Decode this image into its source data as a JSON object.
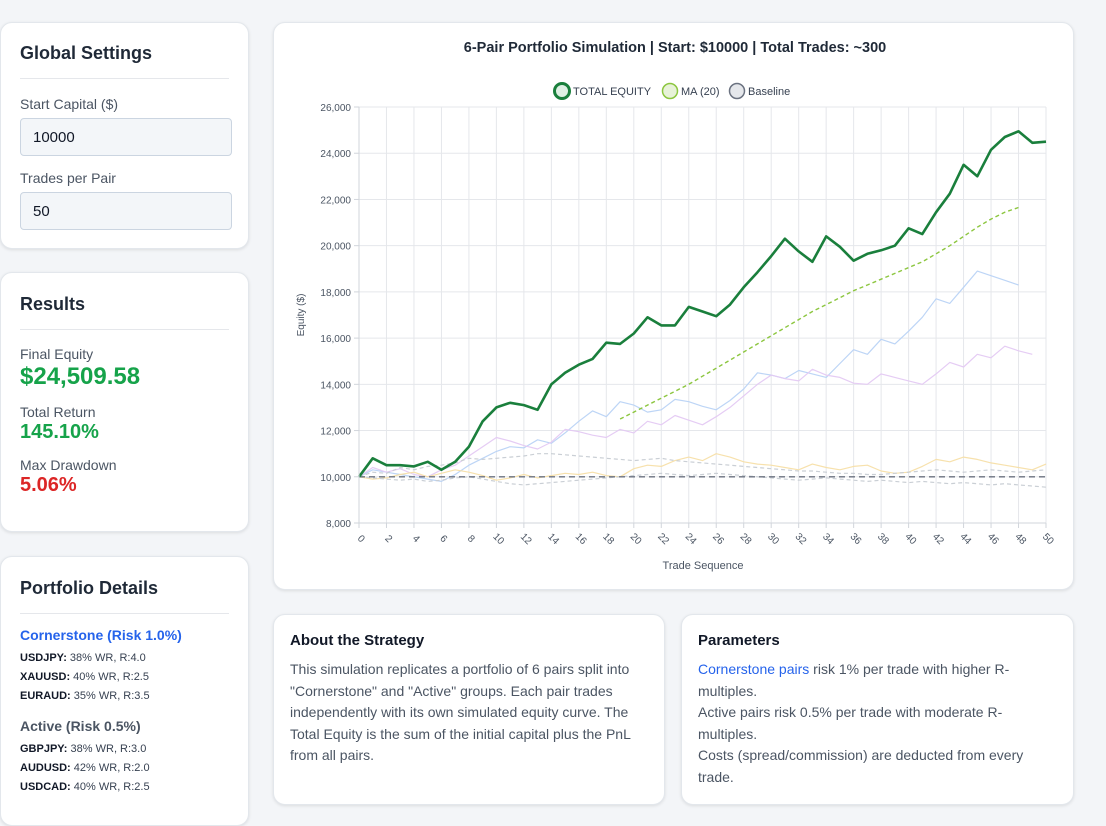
{
  "settings": {
    "title": "Global Settings",
    "start_capital_label": "Start Capital ($)",
    "start_capital_value": "10000",
    "trades_per_pair_label": "Trades per Pair",
    "trades_per_pair_value": "50"
  },
  "results": {
    "title": "Results",
    "final_equity_label": "Final Equity",
    "final_equity_value": "$24,509.58",
    "total_return_label": "Total Return",
    "total_return_value": "145.10%",
    "max_drawdown_label": "Max Drawdown",
    "max_drawdown_value": "5.06%"
  },
  "portfolio": {
    "title": "Portfolio Details",
    "cornerstone_title": "Cornerstone (Risk 1.0%)",
    "cornerstone_pairs": [
      {
        "symbol": "USDJPY:",
        "stats": " 38% WR, R:4.0"
      },
      {
        "symbol": "XAUUSD:",
        "stats": " 40% WR, R:2.5"
      },
      {
        "symbol": "EURAUD:",
        "stats": " 35% WR, R:3.5"
      }
    ],
    "active_title": "Active (Risk 0.5%)",
    "active_pairs": [
      {
        "symbol": "GBPJPY:",
        "stats": " 38% WR, R:3.0"
      },
      {
        "symbol": "AUDUSD:",
        "stats": " 42% WR, R:2.0"
      },
      {
        "symbol": "USDCAD:",
        "stats": " 40% WR, R:2.5"
      }
    ]
  },
  "about": {
    "title": "About the Strategy",
    "text": "This simulation replicates a portfolio of 6 pairs split into \"Cornerstone\" and \"Active\" groups. Each pair trades independently with its own simulated equity curve. The Total Equity is the sum of the initial capital plus the PnL from all pairs."
  },
  "parameters": {
    "title": "Parameters",
    "line1_link": "Cornerstone pairs",
    "line1_rest": " risk 1% per trade with higher R-multiples.",
    "line2": "Active pairs risk 0.5% per trade with moderate R-multiples.",
    "line3": "Costs (spread/commission) are deducted from every trade."
  },
  "colors": {
    "total_equity": "#1a7f3c",
    "ma": "#8cc63f",
    "baseline": "#6b7280",
    "accent_green": "#16a34a",
    "accent_red": "#dc2626",
    "link_blue": "#2563eb"
  },
  "chart_data": {
    "type": "line",
    "title": "6-Pair Portfolio Simulation | Start: $10000 | Total Trades: ~300",
    "xlabel": "Trade Sequence",
    "ylabel": "Equity ($)",
    "xlim": [
      0,
      50
    ],
    "ylim": [
      8000,
      26000
    ],
    "x_ticks": [
      "0",
      "2",
      "4",
      "6",
      "8",
      "10",
      "12",
      "14",
      "16",
      "18",
      "20",
      "22",
      "24",
      "26",
      "28",
      "30",
      "32",
      "34",
      "36",
      "38",
      "40",
      "42",
      "44",
      "46",
      "48",
      "50"
    ],
    "y_ticks": [
      "8,000",
      "10,000",
      "12,000",
      "14,000",
      "16,000",
      "18,000",
      "20,000",
      "22,000",
      "24,000",
      "26,000"
    ],
    "legend": [
      "TOTAL EQUITY",
      "MA (20)",
      "Baseline"
    ],
    "legend_position": "top-center",
    "grid": true,
    "series": [
      {
        "name": "TOTAL EQUITY",
        "color": "#1a7f3c",
        "x_start": 0,
        "values": [
          10000,
          10800,
          10500,
          10500,
          10450,
          10650,
          10300,
          10650,
          11300,
          12400,
          13000,
          13200,
          13100,
          12900,
          14000,
          14500,
          14850,
          15100,
          15800,
          15750,
          16200,
          16900,
          16550,
          16550,
          17350,
          17150,
          16950,
          17450,
          18200,
          18850,
          19550,
          20300,
          19750,
          19300,
          20400,
          19950,
          19350,
          19650,
          19800,
          20000,
          20750,
          20500,
          21450,
          22250,
          23500,
          23000,
          24150,
          24700,
          24950,
          24450,
          24500
        ]
      },
      {
        "name": "MA (20)",
        "color": "#8cc63f",
        "dashed": true,
        "x_start": 19,
        "values": [
          12500,
          12800,
          13100,
          13400,
          13700,
          14000,
          14350,
          14700,
          15050,
          15400,
          15750,
          16100,
          16450,
          16800,
          17150,
          17450,
          17750,
          18050,
          18300,
          18550,
          18800,
          19050,
          19300,
          19650,
          20000,
          20400,
          20800,
          21150,
          21450,
          21650
        ]
      },
      {
        "name": "Baseline",
        "color": "#6b7280",
        "dashed": true,
        "x_start": 0,
        "values": [
          10000,
          10000
        ]
      },
      {
        "color": "#b9d3f5",
        "x_start": 0,
        "values": [
          10000,
          10300,
          10200,
          10100,
          10000,
          9900,
          9800,
          10100,
          10500,
          10800,
          11100,
          11300,
          11250,
          11600,
          11450,
          11900,
          12400,
          12850,
          12600,
          13250,
          13100,
          12800,
          12900,
          13350,
          13250,
          13050,
          12900,
          13300,
          13800,
          14500,
          14400,
          14250,
          14600,
          14450,
          14300,
          14900,
          15500,
          15300,
          15950,
          15750,
          16300,
          16900,
          17700,
          17500,
          18200,
          18900,
          18700,
          18500,
          18300
        ]
      },
      {
        "color": "#e4c9f3",
        "x_start": 0,
        "values": [
          10000,
          10400,
          10200,
          10350,
          10100,
          10000,
          10300,
          10500,
          10900,
          11300,
          11700,
          11550,
          11350,
          11200,
          11500,
          12050,
          11950,
          11800,
          11700,
          12050,
          11900,
          12400,
          12250,
          12650,
          12450,
          12250,
          12600,
          13000,
          13500,
          14000,
          14400,
          14250,
          14150,
          14650,
          14400,
          14300,
          14050,
          14000,
          14450,
          14300,
          14150,
          14000,
          14450,
          14950,
          14750,
          15300,
          15150,
          15650,
          15450,
          15300
        ]
      },
      {
        "color": "#f7dfa8",
        "x_start": 0,
        "values": [
          10000,
          9900,
          9950,
          10100,
          10200,
          10000,
          10150,
          10300,
          10200,
          10050,
          9850,
          9950,
          10100,
          9950,
          10050,
          10150,
          10100,
          10200,
          10050,
          10000,
          10350,
          10500,
          10450,
          10700,
          10850,
          10700,
          11000,
          10850,
          10650,
          10550,
          10500,
          10400,
          10300,
          10550,
          10400,
          10300,
          10450,
          10500,
          10250,
          10150,
          10200,
          10450,
          10750,
          10650,
          10850,
          10750,
          10600,
          10500,
          10400,
          10300,
          10550
        ]
      },
      {
        "color": "#c7ccd3",
        "dashed": true,
        "x_start": 0,
        "values": [
          10000,
          10200,
          10150,
          10400,
          10300,
          10450,
          10500,
          10600,
          10800,
          10750,
          10800,
          10850,
          10900,
          11000,
          11000,
          10950,
          10900,
          10850,
          10800,
          10750,
          10700,
          10750,
          10800,
          10700,
          10650,
          10600,
          10550,
          10500,
          10450,
          10400,
          10350,
          10300,
          10250,
          10250,
          10200,
          10150,
          10150,
          10100,
          10100,
          10150,
          10200,
          10250,
          10300,
          10250,
          10200,
          10250,
          10300,
          10250,
          10200,
          10250,
          10300
        ]
      },
      {
        "color": "#c7ccd3",
        "dashed": true,
        "x_start": 0,
        "values": [
          10000,
          9950,
          9900,
          9850,
          9900,
          9800,
          9850,
          9950,
          10000,
          9900,
          9800,
          9700,
          9650,
          9700,
          9750,
          9800,
          9850,
          9900,
          9950,
          10000,
          10050,
          10100,
          10150,
          10100,
          10050,
          10100,
          10150,
          10100,
          10050,
          10000,
          9950,
          9900,
          9850,
          9900,
          9950,
          9900,
          9850,
          9800,
          9850,
          9800,
          9750,
          9800,
          9750,
          9700,
          9750,
          9700,
          9650,
          9700,
          9650,
          9600,
          9550
        ]
      }
    ]
  }
}
